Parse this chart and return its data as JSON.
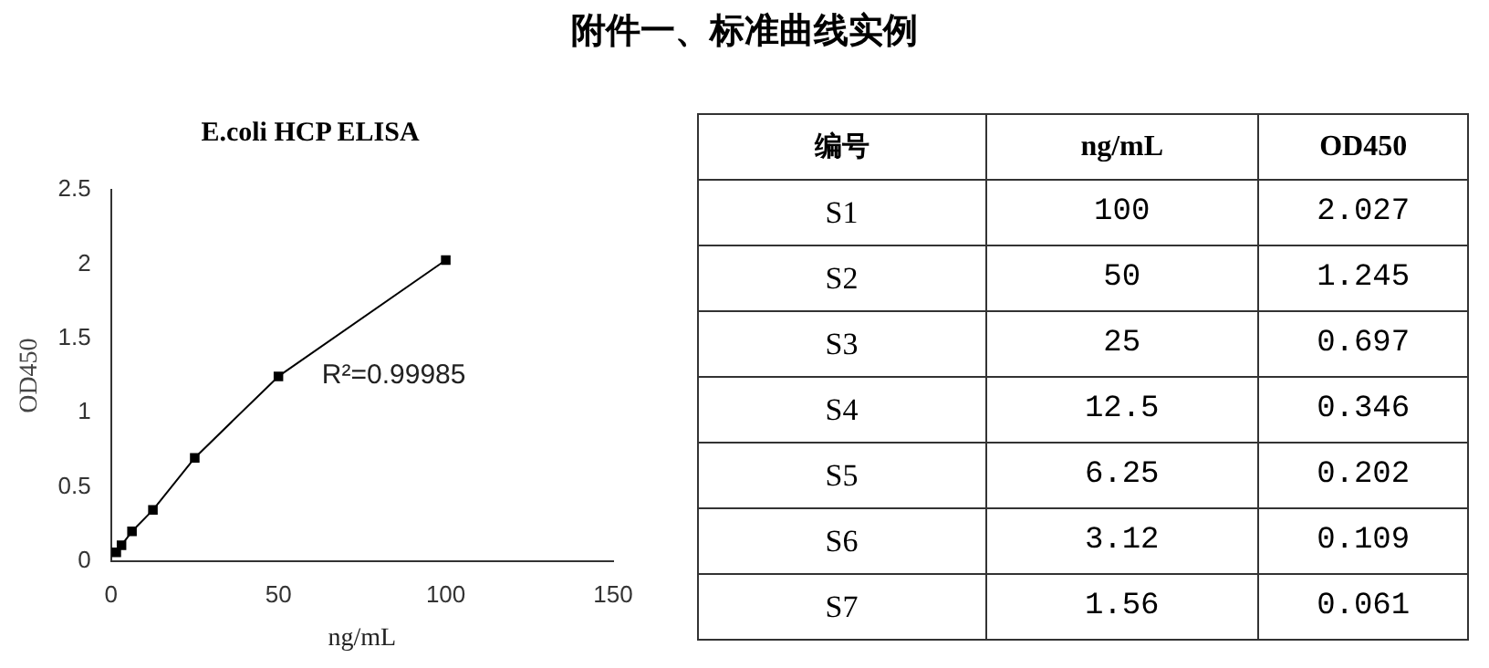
{
  "chart_data": [
    {
      "type": "line",
      "title": "E.coli HCP ELISA",
      "xlabel": "ng/mL",
      "ylabel": "OD450",
      "x": [
        1.56,
        3.12,
        6.25,
        12.5,
        25,
        50,
        100
      ],
      "series": [
        {
          "color": "#000000",
          "values": [
            0.061,
            0.109,
            0.202,
            0.346,
            0.697,
            1.245,
            2.027
          ]
        }
      ],
      "xlim": [
        0,
        150
      ],
      "xticks": [
        0,
        50,
        100,
        150
      ],
      "ylim": [
        0,
        2.5
      ],
      "yticks": [
        0,
        0.5,
        1.0,
        1.5,
        2.0,
        2.5
      ],
      "grid": false,
      "legend": false,
      "marker": "square",
      "line_style": "solid",
      "annotations": [
        "R²=0.99985"
      ]
    },
    {
      "type": "heatmap",
      "title": "附件一、标准曲线实例",
      "legend_title": "编号",
      "categories": [
        "ng/mL",
        "OD450"
      ],
      "y_categories": [
        "S1",
        "S2",
        "S3",
        "S4",
        "S5",
        "S6",
        "S7"
      ],
      "cells": [
        [
          100,
          2.027
        ],
        [
          50,
          1.245
        ],
        [
          25,
          0.697
        ],
        [
          12.5,
          0.346
        ],
        [
          6.25,
          0.202
        ],
        [
          3.12,
          0.109
        ],
        [
          1.56,
          0.061
        ]
      ],
      "data_labels": true
    }
  ]
}
